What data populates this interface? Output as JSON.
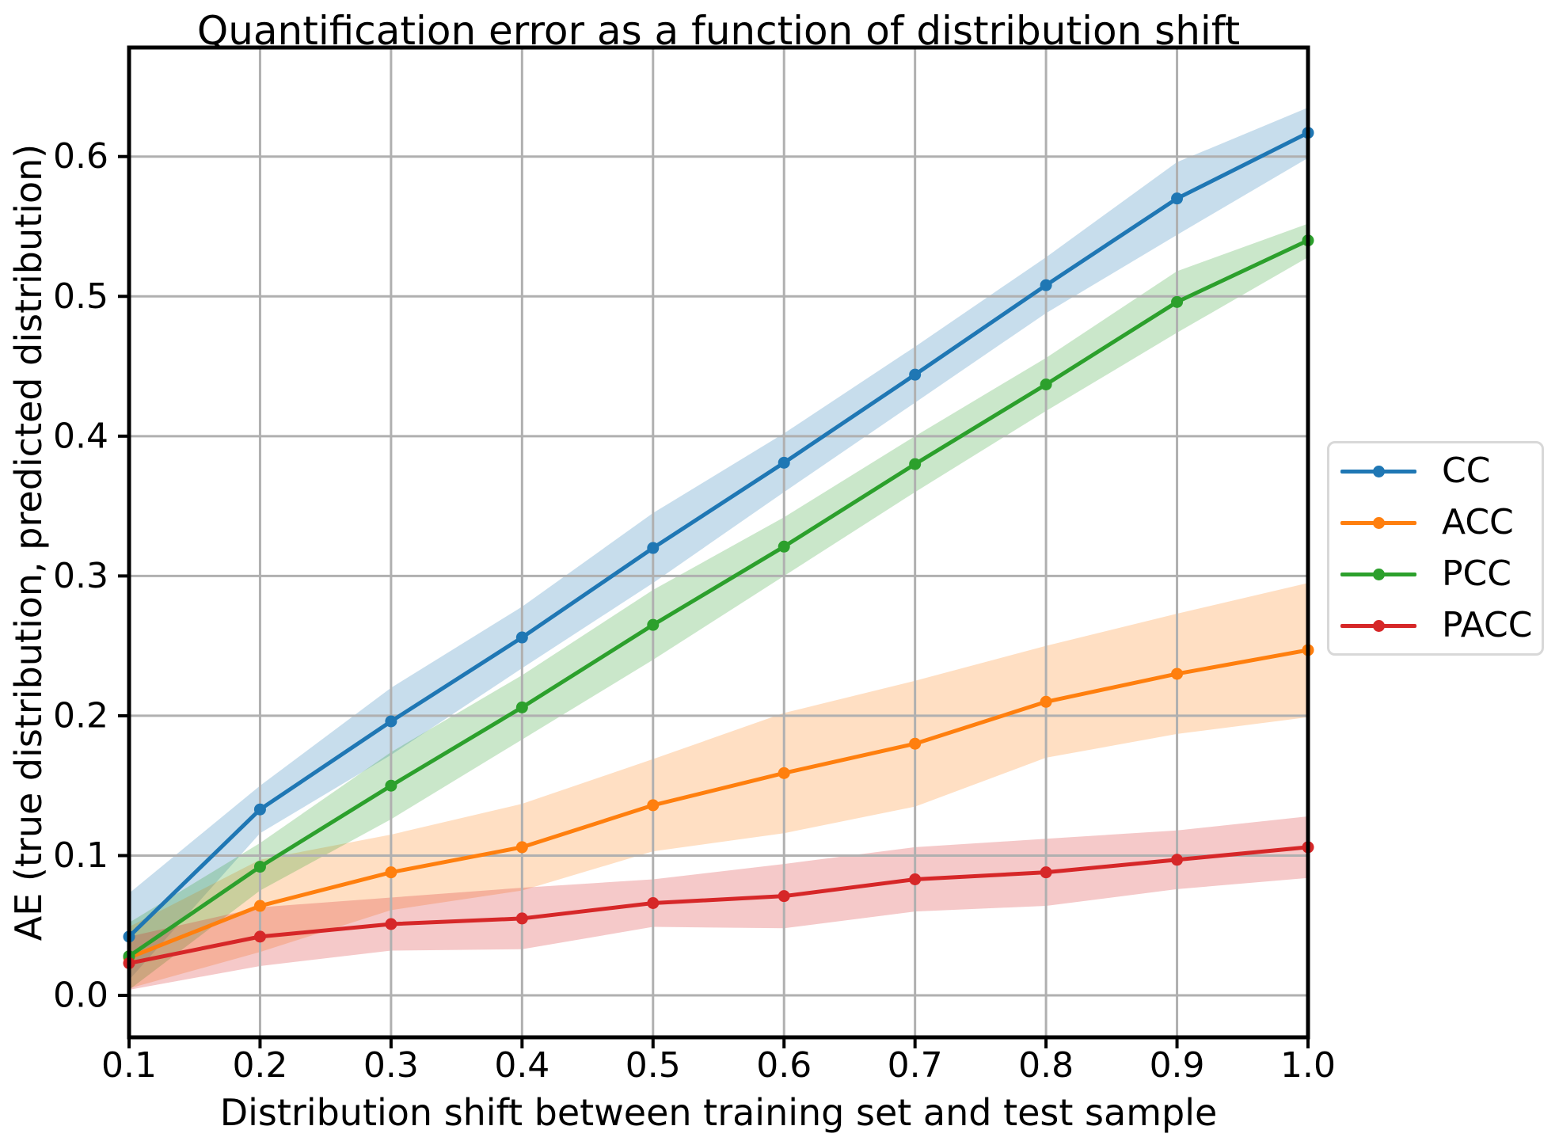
{
  "figure": {
    "background": "#ffffff",
    "grid_color": "#b0b0b0",
    "spine_color": "#000000",
    "legend_border_color": "#d8d8d8"
  },
  "chart_data": {
    "type": "line",
    "title": "Quantification error as a function of distribution shift",
    "xlabel": "Distribution shift between training set and test sample",
    "ylabel": "AE (true distribution, predicted distribution)",
    "x": [
      0.1,
      0.2,
      0.3,
      0.4,
      0.5,
      0.6,
      0.7,
      0.8,
      0.9,
      1.0
    ],
    "xlim": [
      0.1,
      1.0
    ],
    "ylim": [
      -0.03,
      0.678
    ],
    "xtick_labels": [
      "0.1",
      "0.2",
      "0.3",
      "0.4",
      "0.5",
      "0.6",
      "0.7",
      "0.8",
      "0.9",
      "1.0"
    ],
    "xtick_values": [
      0.1,
      0.2,
      0.3,
      0.4,
      0.5,
      0.6,
      0.7,
      0.8,
      0.9,
      1.0
    ],
    "ytick_labels": [
      "0.0",
      "0.1",
      "0.2",
      "0.3",
      "0.4",
      "0.5",
      "0.6"
    ],
    "ytick_values": [
      0.0,
      0.1,
      0.2,
      0.3,
      0.4,
      0.5,
      0.6
    ],
    "grid": true,
    "legend_position": "right-outside",
    "band_opacity": 0.25,
    "series": [
      {
        "name": "CC",
        "color": "#1f77b4",
        "values": [
          0.042,
          0.133,
          0.196,
          0.256,
          0.32,
          0.381,
          0.444,
          0.508,
          0.57,
          0.617
        ],
        "band_halfwidth": [
          0.031,
          0.017,
          0.024,
          0.022,
          0.025,
          0.021,
          0.02,
          0.02,
          0.026,
          0.018
        ]
      },
      {
        "name": "ACC",
        "color": "#ff7f0e",
        "values": [
          0.027,
          0.064,
          0.088,
          0.106,
          0.136,
          0.159,
          0.18,
          0.21,
          0.23,
          0.247
        ],
        "band_halfwidth": [
          0.022,
          0.033,
          0.027,
          0.031,
          0.033,
          0.043,
          0.045,
          0.04,
          0.043,
          0.048
        ]
      },
      {
        "name": "PCC",
        "color": "#2ca02c",
        "values": [
          0.028,
          0.092,
          0.15,
          0.206,
          0.265,
          0.321,
          0.38,
          0.437,
          0.496,
          0.54
        ],
        "band_halfwidth": [
          0.024,
          0.017,
          0.024,
          0.023,
          0.025,
          0.021,
          0.02,
          0.019,
          0.022,
          0.012
        ]
      },
      {
        "name": "PACC",
        "color": "#d62728",
        "values": [
          0.023,
          0.042,
          0.051,
          0.055,
          0.066,
          0.071,
          0.083,
          0.088,
          0.097,
          0.106
        ],
        "band_halfwidth": [
          0.019,
          0.021,
          0.019,
          0.022,
          0.017,
          0.023,
          0.023,
          0.024,
          0.021,
          0.022
        ]
      }
    ]
  }
}
